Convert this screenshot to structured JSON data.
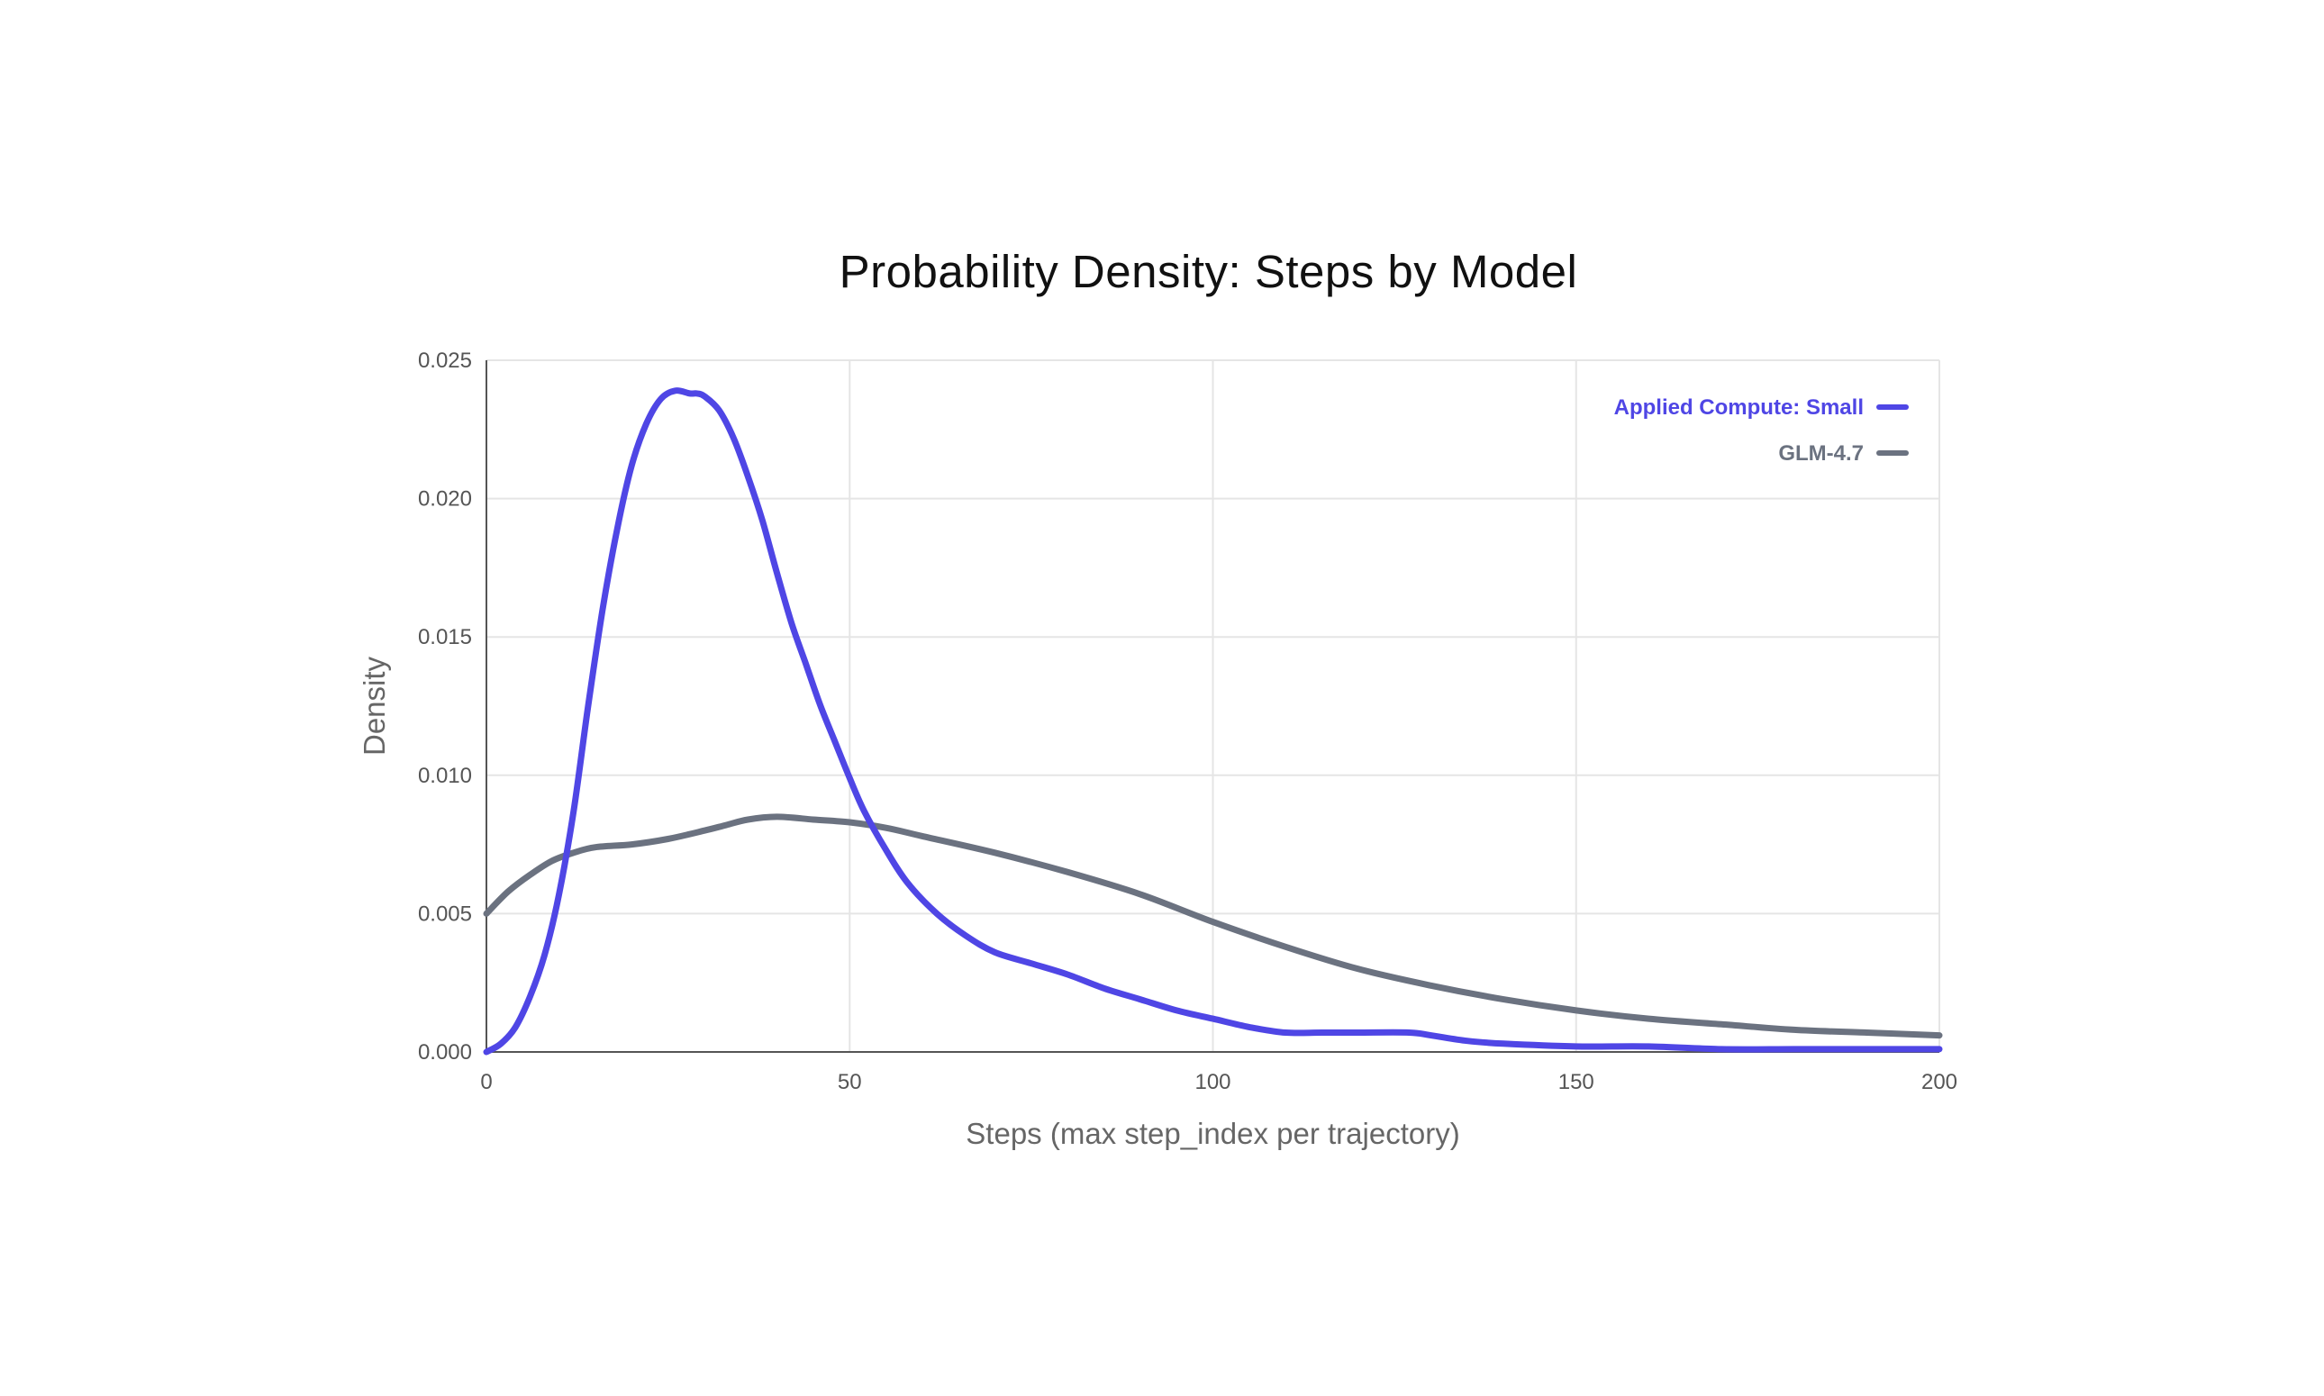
{
  "chart_data": {
    "type": "line",
    "title": "Probability Density: Steps by Model",
    "xlabel": "Steps (max step_index per trajectory)",
    "ylabel": "Density",
    "xlim": [
      0,
      200
    ],
    "ylim": [
      0,
      0.025
    ],
    "x_ticks": [
      "0",
      "50",
      "100",
      "150",
      "200"
    ],
    "y_ticks": [
      "0.000",
      "0.005",
      "0.010",
      "0.015",
      "0.020",
      "0.025"
    ],
    "grid": true,
    "legend_position": "top-right",
    "series": [
      {
        "name": "Applied Compute: Small",
        "color": "#4f46e5",
        "x": [
          0,
          2,
          4,
          6,
          8,
          10,
          12,
          14,
          16,
          18,
          20,
          22,
          24,
          26,
          28,
          29,
          30,
          32,
          34,
          36,
          38,
          40,
          42,
          44,
          46,
          48,
          50,
          52,
          55,
          58,
          62,
          66,
          70,
          75,
          80,
          85,
          90,
          95,
          100,
          105,
          110,
          115,
          120,
          127,
          130,
          135,
          140,
          150,
          160,
          170,
          180,
          190,
          200
        ],
        "y": [
          0.0,
          0.0003,
          0.0009,
          0.002,
          0.0035,
          0.0057,
          0.0087,
          0.0125,
          0.016,
          0.0189,
          0.0212,
          0.0227,
          0.0236,
          0.0239,
          0.0238,
          0.0238,
          0.0237,
          0.0232,
          0.0222,
          0.0208,
          0.0192,
          0.0173,
          0.0155,
          0.014,
          0.0125,
          0.0112,
          0.0099,
          0.0087,
          0.0073,
          0.0061,
          0.005,
          0.0042,
          0.0036,
          0.0032,
          0.0028,
          0.0023,
          0.0019,
          0.0015,
          0.0012,
          0.0009,
          0.0007,
          0.0007,
          0.0007,
          0.0007,
          0.0006,
          0.0004,
          0.0003,
          0.0002,
          0.0002,
          0.0001,
          0.0001,
          0.0001,
          0.0001
        ]
      },
      {
        "name": "GLM-4.7",
        "color": "#6b7280",
        "x": [
          0,
          3,
          6,
          9,
          12,
          15,
          20,
          25,
          30,
          33,
          36,
          40,
          45,
          50,
          55,
          60,
          70,
          80,
          90,
          100,
          110,
          120,
          130,
          140,
          150,
          160,
          170,
          180,
          190,
          200
        ],
        "y": [
          0.005,
          0.0058,
          0.0064,
          0.0069,
          0.0072,
          0.0074,
          0.0075,
          0.0077,
          0.008,
          0.0082,
          0.0084,
          0.0085,
          0.0084,
          0.0083,
          0.0081,
          0.0078,
          0.0072,
          0.0065,
          0.0057,
          0.0047,
          0.0038,
          0.003,
          0.0024,
          0.0019,
          0.0015,
          0.0012,
          0.001,
          0.0008,
          0.0007,
          0.0006
        ]
      }
    ]
  }
}
